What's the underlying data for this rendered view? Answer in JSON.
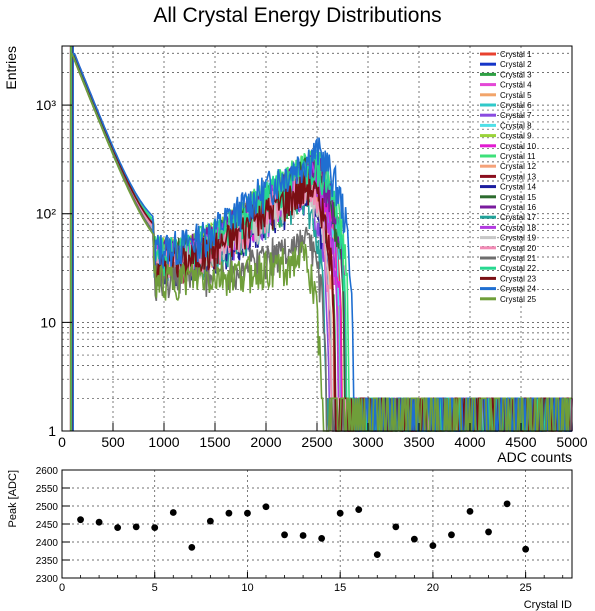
{
  "chart_data": [
    {
      "type": "line",
      "title": "All Crystal Energy Distributions",
      "xlabel": "ADC counts",
      "ylabel": "Entries",
      "xlim": [
        0,
        5000
      ],
      "ylim": [
        1,
        3500
      ],
      "yscale": "log",
      "grid": true,
      "legend_position": "top-right",
      "x_ticks": [
        "0",
        "500",
        "1000",
        "1500",
        "2000",
        "2500",
        "3000",
        "3500",
        "4000",
        "4500",
        "5000"
      ],
      "y_ticks": [
        "1",
        "10",
        "10²",
        "10³"
      ],
      "series": [
        {
          "name": "Crystal 1",
          "color": "#e8412f",
          "peak_adc": 2462,
          "peak_height": 260
        },
        {
          "name": "Crystal 2",
          "color": "#1535c8",
          "peak_adc": 2455,
          "peak_height": 240
        },
        {
          "name": "Crystal 3",
          "color": "#2ea043",
          "peak_adc": 2440,
          "peak_height": 190
        },
        {
          "name": "Crystal 4",
          "color": "#e447d6",
          "peak_adc": 2442,
          "peak_height": 230
        },
        {
          "name": "Crystal 5",
          "color": "#f2a46a",
          "peak_adc": 2440,
          "peak_height": 250
        },
        {
          "name": "Crystal 6",
          "color": "#30c9c9",
          "peak_adc": 2482,
          "peak_height": 280
        },
        {
          "name": "Crystal 7",
          "color": "#8a4be0",
          "peak_adc": 2385,
          "peak_height": 170
        },
        {
          "name": "Crystal 8",
          "color": "#4fe0e8",
          "peak_adc": 2458,
          "peak_height": 240
        },
        {
          "name": "Crystal 9",
          "color": "#9bd43a",
          "peak_adc": 2480,
          "peak_height": 300
        },
        {
          "name": "Crystal 10",
          "color": "#e21bd1",
          "peak_adc": 2480,
          "peak_height": 220
        },
        {
          "name": "Crystal 11",
          "color": "#3ee07a",
          "peak_adc": 2498,
          "peak_height": 320
        },
        {
          "name": "Crystal 12",
          "color": "#f5a27a",
          "peak_adc": 2420,
          "peak_height": 200
        },
        {
          "name": "Crystal 13",
          "color": "#8b0f1e",
          "peak_adc": 2418,
          "peak_height": 210
        },
        {
          "name": "Crystal 14",
          "color": "#1a1c9e",
          "peak_adc": 2410,
          "peak_height": 160
        },
        {
          "name": "Crystal 15",
          "color": "#2c6b2e",
          "peak_adc": 2480,
          "peak_height": 270
        },
        {
          "name": "Crystal 16",
          "color": "#7a1b9e",
          "peak_adc": 2490,
          "peak_height": 280
        },
        {
          "name": "Crystal 17",
          "color": "#22a39a",
          "peak_adc": 2365,
          "peak_height": 150
        },
        {
          "name": "Crystal 18",
          "color": "#b23ae0",
          "peak_adc": 2442,
          "peak_height": 230
        },
        {
          "name": "Crystal 19",
          "color": "#c7c7c7",
          "peak_adc": 2408,
          "peak_height": 180
        },
        {
          "name": "Crystal 20",
          "color": "#f28ab5",
          "peak_adc": 2390,
          "peak_height": 190
        },
        {
          "name": "Crystal 21",
          "color": "#6e6e6e",
          "peak_adc": 2420,
          "peak_height": 60
        },
        {
          "name": "Crystal 22",
          "color": "#27d890",
          "peak_adc": 2485,
          "peak_height": 300
        },
        {
          "name": "Crystal 23",
          "color": "#7a0f14",
          "peak_adc": 2428,
          "peak_height": 200
        },
        {
          "name": "Crystal 24",
          "color": "#1f6fd1",
          "peak_adc": 2506,
          "peak_height": 380
        },
        {
          "name": "Crystal 25",
          "color": "#6f9e3a",
          "peak_adc": 2380,
          "peak_height": 40
        }
      ]
    },
    {
      "type": "scatter",
      "title": "",
      "xlabel": "Crystal ID",
      "ylabel": "Peak [ADC]",
      "xlim": [
        0,
        27.5
      ],
      "ylim": [
        2300,
        2600
      ],
      "grid": true,
      "x_ticks": [
        "0",
        "5",
        "10",
        "15",
        "20",
        "25"
      ],
      "y_ticks": [
        "2300",
        "2350",
        "2400",
        "2450",
        "2500",
        "2550",
        "2600"
      ],
      "x": [
        1,
        2,
        3,
        4,
        5,
        6,
        7,
        8,
        9,
        10,
        11,
        12,
        13,
        14,
        15,
        16,
        17,
        18,
        19,
        20,
        21,
        22,
        23,
        24,
        25
      ],
      "y": [
        2462,
        2455,
        2440,
        2442,
        2440,
        2482,
        2385,
        2458,
        2480,
        2480,
        2498,
        2420,
        2418,
        2410,
        2480,
        2490,
        2365,
        2442,
        2408,
        2390,
        2420,
        2485,
        2428,
        2506,
        2380
      ]
    }
  ]
}
